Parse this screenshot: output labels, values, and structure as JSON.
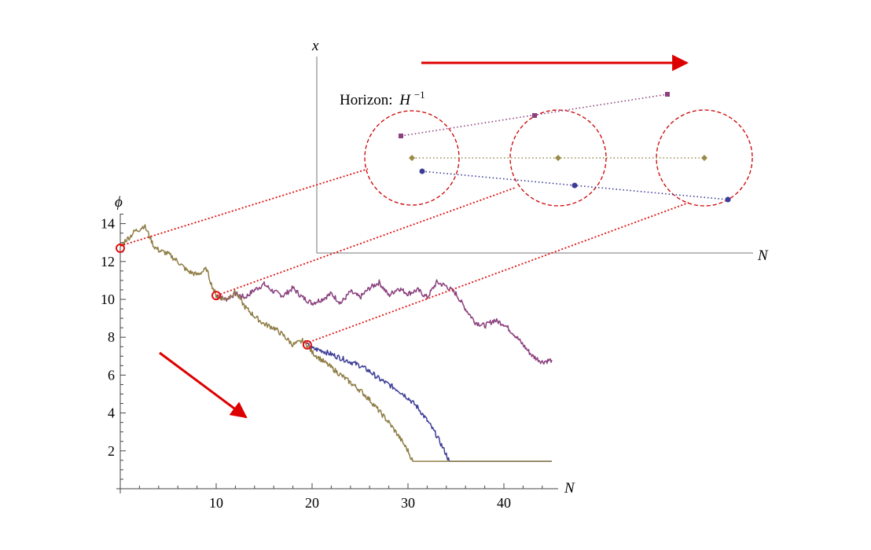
{
  "chart_data": [
    {
      "type": "line",
      "ylabel": "ϕ",
      "xlabel": "N",
      "xlim": [
        0,
        45
      ],
      "ylim": [
        0,
        14.5
      ],
      "x_ticks": [
        "10",
        "20",
        "30",
        "40"
      ],
      "y_ticks": [
        "2",
        "4",
        "6",
        "8",
        "10",
        "12",
        "14"
      ],
      "grid": false,
      "legend": "none",
      "colors": {
        "trunk": "#8f7d45",
        "purple": "#8a3f7e",
        "blue": "#3c3c98",
        "marker": "#e01010",
        "arrow": "#dd0000"
      },
      "series": [
        {
          "points": [
            [
              0,
              12.7
            ],
            [
              0.5,
              13.1
            ],
            [
              1,
              13.3
            ],
            [
              1.5,
              13.6
            ],
            [
              2,
              13.7
            ],
            [
              2.5,
              13.9
            ],
            [
              3,
              13.4
            ],
            [
              3.5,
              12.8
            ],
            [
              4,
              12.6
            ],
            [
              5,
              12.4
            ],
            [
              6,
              12.0
            ],
            [
              7,
              11.5
            ],
            [
              8,
              11.3
            ],
            [
              9,
              11.6
            ],
            [
              9.5,
              10.8
            ],
            [
              10,
              10.2
            ],
            [
              11,
              10.0
            ],
            [
              12,
              10.4
            ],
            [
              13,
              9.6
            ],
            [
              14,
              9.1
            ],
            [
              15,
              8.7
            ],
            [
              16,
              8.5
            ],
            [
              17,
              8.1
            ],
            [
              18,
              7.6
            ],
            [
              19,
              7.8
            ],
            [
              19.5,
              7.6
            ],
            [
              20,
              7.2
            ],
            [
              21,
              6.8
            ],
            [
              22,
              6.4
            ],
            [
              23,
              6.0
            ],
            [
              24,
              5.6
            ],
            [
              25,
              5.2
            ],
            [
              26,
              4.7
            ],
            [
              27,
              4.1
            ],
            [
              28,
              3.5
            ],
            [
              29,
              2.8
            ],
            [
              30,
              2.0
            ],
            [
              30.5,
              1.45
            ],
            [
              45,
              1.45
            ]
          ]
        },
        {
          "points": [
            [
              10,
              10.2
            ],
            [
              11,
              10.0
            ],
            [
              12,
              10.3
            ],
            [
              13,
              10.1
            ],
            [
              14,
              10.5
            ],
            [
              15,
              10.8
            ],
            [
              16,
              10.4
            ],
            [
              17,
              10.2
            ],
            [
              18,
              10.6
            ],
            [
              19,
              10.1
            ],
            [
              20,
              9.8
            ],
            [
              21,
              10.0
            ],
            [
              22,
              10.3
            ],
            [
              23,
              9.8
            ],
            [
              24,
              10.4
            ],
            [
              25,
              10.1
            ],
            [
              26,
              10.6
            ],
            [
              27,
              10.9
            ],
            [
              28,
              10.2
            ],
            [
              29,
              10.6
            ],
            [
              30,
              10.3
            ],
            [
              31,
              10.5
            ],
            [
              32,
              10.1
            ],
            [
              33,
              10.9
            ],
            [
              34,
              10.7
            ],
            [
              35,
              10.3
            ],
            [
              36,
              9.5
            ],
            [
              37,
              8.8
            ],
            [
              38,
              8.6
            ],
            [
              39,
              8.9
            ],
            [
              40,
              8.7
            ],
            [
              41,
              8.2
            ],
            [
              42,
              7.6
            ],
            [
              43,
              7.0
            ],
            [
              44,
              6.7
            ],
            [
              45,
              6.8
            ]
          ]
        },
        {
          "points": [
            [
              19.5,
              7.6
            ],
            [
              20,
              7.4
            ],
            [
              21,
              7.3
            ],
            [
              22,
              7.1
            ],
            [
              23,
              6.9
            ],
            [
              24,
              6.7
            ],
            [
              25,
              6.5
            ],
            [
              26,
              6.2
            ],
            [
              27,
              5.8
            ],
            [
              28,
              5.5
            ],
            [
              29,
              5.2
            ],
            [
              30,
              4.8
            ],
            [
              31,
              4.3
            ],
            [
              32,
              3.6
            ],
            [
              33,
              2.8
            ],
            [
              34,
              1.8
            ],
            [
              34.3,
              1.45
            ],
            [
              45,
              1.45
            ]
          ]
        }
      ],
      "markers": [
        [
          0,
          12.7
        ],
        [
          10,
          10.2
        ],
        [
          19.5,
          7.6
        ]
      ]
    },
    {
      "type": "diagram",
      "ylabel": "x",
      "xlabel": "N",
      "annotation": "Horizon:",
      "annotation_math": "H",
      "annotation_exp": "−1",
      "colors": {
        "purple": "#8a3f7e",
        "olive": "#9a8a47",
        "blue": "#3c3c98",
        "circle": "#cc0000",
        "link": "#e01010",
        "arrow": "#dd0000"
      }
    }
  ]
}
